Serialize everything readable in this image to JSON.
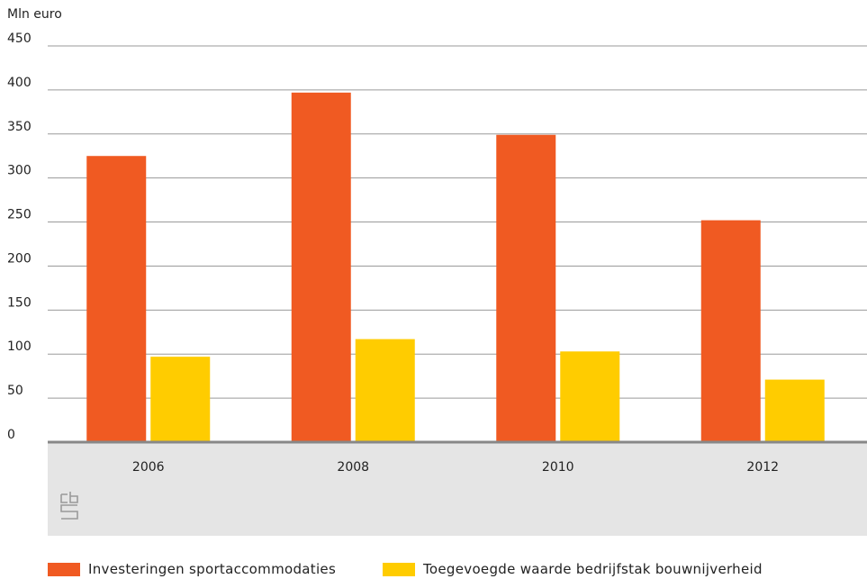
{
  "chart_data": {
    "type": "bar",
    "title": "",
    "ylabel": "Mln euro",
    "xlabel": "",
    "ylim": [
      0,
      450
    ],
    "yticks": [
      0,
      50,
      100,
      150,
      200,
      250,
      300,
      350,
      400,
      450
    ],
    "grid": true,
    "legend_position": "bottom",
    "categories": [
      "2006",
      "2008",
      "2010",
      "2012"
    ],
    "series": [
      {
        "name": "Investeringen sportaccommodaties",
        "color": "#f05a22",
        "values": [
          325,
          397,
          349,
          252
        ]
      },
      {
        "name": "Toegevoegde waarde bedrijfstak bouwnijverheid",
        "color": "#ffcc00",
        "values": [
          97,
          117,
          103,
          71
        ]
      }
    ]
  },
  "logo_icon": "cbs-logo-icon"
}
